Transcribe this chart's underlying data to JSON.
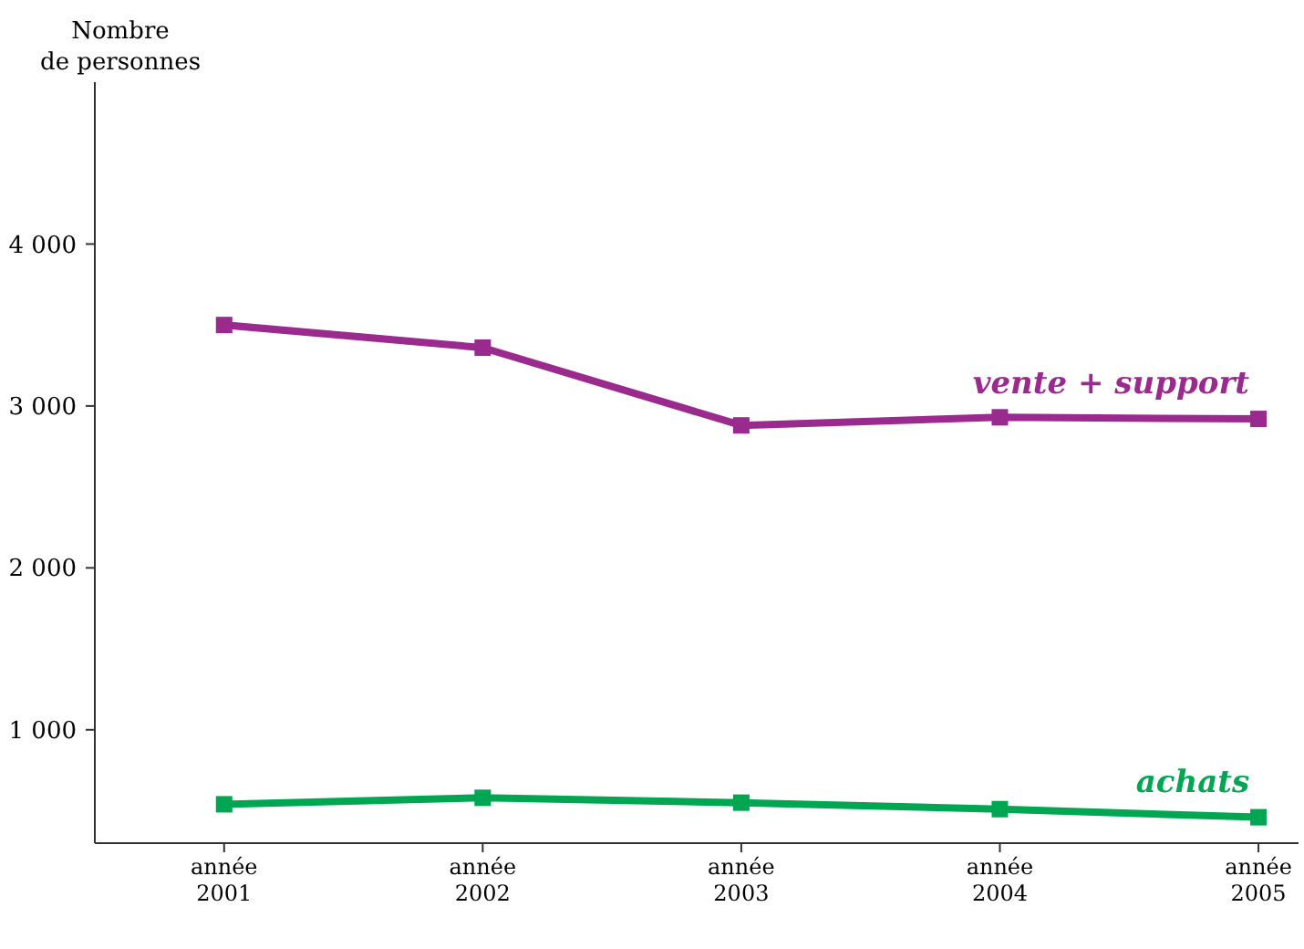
{
  "chart_data": {
    "type": "line",
    "ylabel": "Nombre de personnes",
    "categories": [
      "année 2001",
      "année 2002",
      "année 2003",
      "année 2004",
      "année 2005"
    ],
    "series": [
      {
        "name": "vente + support",
        "color": "#9b2a8f",
        "values": [
          3500,
          3360,
          2880,
          2930,
          2920
        ]
      },
      {
        "name": "achats",
        "color": "#00a651",
        "values": [
          540,
          580,
          550,
          510,
          460
        ]
      }
    ],
    "ylim": [
      300,
      5000
    ],
    "yticks": [
      {
        "value": 1000,
        "label": "1 000"
      },
      {
        "value": 2000,
        "label": "2 000"
      },
      {
        "value": 3000,
        "label": "3 000"
      },
      {
        "value": 4000,
        "label": "4 000"
      }
    ],
    "grid": false,
    "marker": "square",
    "line_style": "solid"
  }
}
